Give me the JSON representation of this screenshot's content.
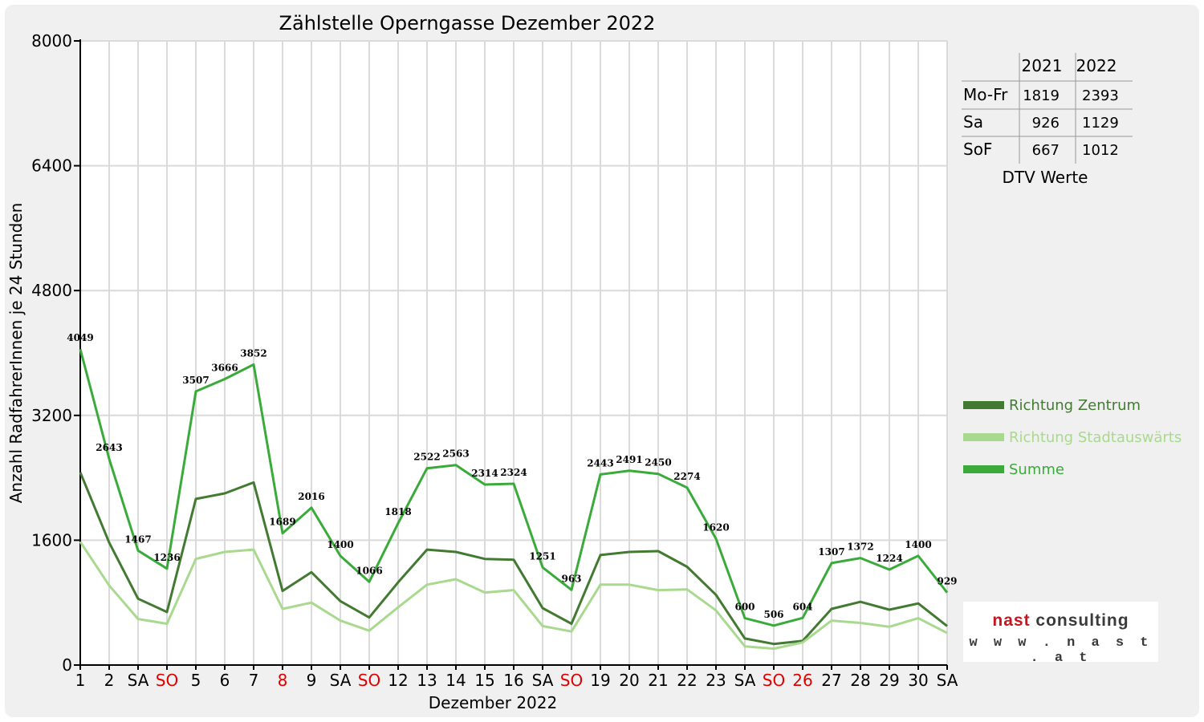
{
  "chart_data": {
    "type": "line",
    "title": "Zählstelle Operngasse Dezember 2022",
    "xlabel": "Dezember 2022",
    "ylabel": "Anzahl RadfahrerInnen je 24 Stunden",
    "ylim": [
      0,
      8000
    ],
    "yticks": [
      "0",
      "1600",
      "3200",
      "4800",
      "6400",
      "8000"
    ],
    "grid": true,
    "legend_position": "right",
    "categories": [
      "1",
      "2",
      "SA",
      "SO",
      "5",
      "6",
      "7",
      "8",
      "9",
      "SA",
      "SO",
      "12",
      "13",
      "14",
      "15",
      "16",
      "SA",
      "SO",
      "19",
      "20",
      "21",
      "22",
      "23",
      "SA",
      "SO",
      "26",
      "27",
      "28",
      "29",
      "30",
      "SA"
    ],
    "red_categories": [
      3,
      7,
      10,
      17,
      24,
      25
    ],
    "series": [
      {
        "name": "Richtung Zentrum",
        "color": "#437a32",
        "values": [
          2470,
          1570,
          850,
          680,
          2130,
          2200,
          2340,
          950,
          1190,
          820,
          610,
          1060,
          1480,
          1450,
          1360,
          1350,
          730,
          530,
          1410,
          1450,
          1460,
          1260,
          900,
          340,
          270,
          310,
          720,
          810,
          710,
          790,
          500
        ]
      },
      {
        "name": "Richtung Stadtauswärts",
        "color": "#a9d98e",
        "values": [
          1580,
          1020,
          590,
          530,
          1360,
          1450,
          1480,
          720,
          800,
          570,
          440,
          740,
          1030,
          1100,
          930,
          960,
          500,
          430,
          1030,
          1030,
          960,
          970,
          700,
          240,
          210,
          290,
          570,
          540,
          490,
          600,
          410
        ]
      },
      {
        "name": "Summe",
        "color": "#3aab3a",
        "values": [
          4049,
          2643,
          1467,
          1236,
          3507,
          3666,
          3852,
          1689,
          2016,
          1400,
          1066,
          1818,
          2522,
          2563,
          2314,
          2324,
          1251,
          963,
          2443,
          2491,
          2450,
          2274,
          1620,
          600,
          506,
          604,
          1307,
          1372,
          1224,
          1400,
          929
        ],
        "labels": [
          "4049",
          "2643",
          "1467",
          "1236",
          "3507",
          "3666",
          "3852",
          "1689",
          "2016",
          "1400",
          "1066",
          "1818",
          "2522",
          "2563",
          "2314",
          "2324",
          "1251",
          "963",
          "2443",
          "2491",
          "2450",
          "2274",
          "1620",
          "600",
          "506",
          "604",
          "1307",
          "1372",
          "1224",
          "1400",
          "929"
        ]
      }
    ]
  },
  "dtv_table": {
    "columns": [
      "2021",
      "2022"
    ],
    "rows": [
      {
        "label": "Mo-Fr",
        "v2021": "1819",
        "v2022": "2393"
      },
      {
        "label": "Sa",
        "v2021": "926",
        "v2022": "1129"
      },
      {
        "label": "SoF",
        "v2021": "667",
        "v2022": "1012"
      }
    ],
    "caption": "DTV Werte"
  },
  "logo": {
    "word1": "nast",
    "word2": "consulting",
    "url": "w w w . n a s t . a t"
  }
}
